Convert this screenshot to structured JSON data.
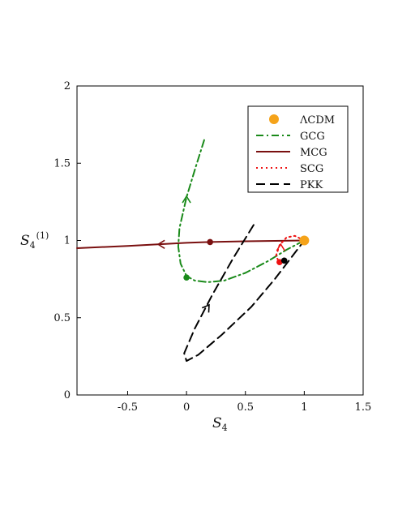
{
  "chart_data": {
    "type": "line",
    "title": "",
    "xlabel": "S",
    "xlabel_sub": "4",
    "ylabel": "S",
    "ylabel_sub": "4",
    "ylabel_sup": "(1)",
    "xlim": [
      -0.93,
      1.5
    ],
    "ylim": [
      0,
      2
    ],
    "xticks": [
      {
        "value": -0.5,
        "label": "-0.5"
      },
      {
        "value": 0,
        "label": "0"
      },
      {
        "value": 0.5,
        "label": "0.5"
      },
      {
        "value": 1,
        "label": "1"
      },
      {
        "value": 1.5,
        "label": "1.5"
      }
    ],
    "yticks": [
      {
        "value": 0,
        "label": "0"
      },
      {
        "value": 0.5,
        "label": "0.5"
      },
      {
        "value": 1,
        "label": "1"
      },
      {
        "value": 1.5,
        "label": "1.5"
      },
      {
        "value": 2,
        "label": "2"
      }
    ],
    "grid": false,
    "legend_position": "top-right",
    "series": [
      {
        "name": "ΛCDM",
        "style": "point",
        "color": "#f5a31a",
        "points": [
          [
            1.0,
            1.0
          ]
        ]
      },
      {
        "name": "GCG",
        "style": "dashdot",
        "color": "#1a8a1a",
        "points": [
          [
            0.15,
            1.65
          ],
          [
            0.08,
            1.48
          ],
          [
            0.0,
            1.28
          ],
          [
            -0.06,
            1.08
          ],
          [
            -0.07,
            0.96
          ],
          [
            -0.05,
            0.85
          ],
          [
            0.0,
            0.77
          ],
          [
            0.07,
            0.74
          ],
          [
            0.18,
            0.73
          ],
          [
            0.32,
            0.74
          ],
          [
            0.5,
            0.79
          ],
          [
            0.7,
            0.87
          ],
          [
            0.85,
            0.94
          ],
          [
            1.0,
            1.0
          ]
        ],
        "marker": [
          0.0,
          0.76
        ]
      },
      {
        "name": "MCG",
        "style": "solid",
        "color": "#7a1010",
        "points": [
          [
            -0.93,
            0.95
          ],
          [
            -0.5,
            0.965
          ],
          [
            0.0,
            0.985
          ],
          [
            0.2,
            0.99
          ],
          [
            0.5,
            0.995
          ],
          [
            1.0,
            1.0
          ]
        ],
        "marker": [
          0.2,
          0.99
        ]
      },
      {
        "name": "SCG",
        "style": "dotted",
        "color": "#ee1111",
        "points": [
          [
            1.0,
            1.0
          ],
          [
            0.92,
            1.03
          ],
          [
            0.85,
            1.02
          ],
          [
            0.79,
            0.97
          ],
          [
            0.76,
            0.9
          ],
          [
            0.78,
            0.87
          ],
          [
            0.82,
            0.86
          ]
        ],
        "marker": [
          0.79,
          0.86
        ]
      },
      {
        "name": "PKK",
        "style": "dashed",
        "color": "#000000",
        "points": [
          [
            0.57,
            1.1
          ],
          [
            0.4,
            0.89
          ],
          [
            0.22,
            0.65
          ],
          [
            0.07,
            0.43
          ],
          [
            -0.02,
            0.27
          ],
          [
            0.0,
            0.22
          ],
          [
            0.1,
            0.26
          ],
          [
            0.3,
            0.39
          ],
          [
            0.55,
            0.57
          ],
          [
            0.75,
            0.75
          ],
          [
            0.88,
            0.88
          ],
          [
            1.0,
            1.0
          ]
        ],
        "marker": [
          0.83,
          0.87
        ]
      }
    ],
    "arrows": [
      {
        "series": "MCG",
        "at": [
          -0.22,
          0.975
        ],
        "dir": "left"
      },
      {
        "series": "GCG",
        "at": [
          0.0,
          1.27
        ],
        "dir": "up"
      },
      {
        "series": "PKK",
        "at": [
          0.18,
          0.57
        ],
        "dir": "up-right"
      },
      {
        "series": "SCG",
        "at": [
          0.8,
          0.96
        ],
        "dir": "up"
      }
    ]
  }
}
